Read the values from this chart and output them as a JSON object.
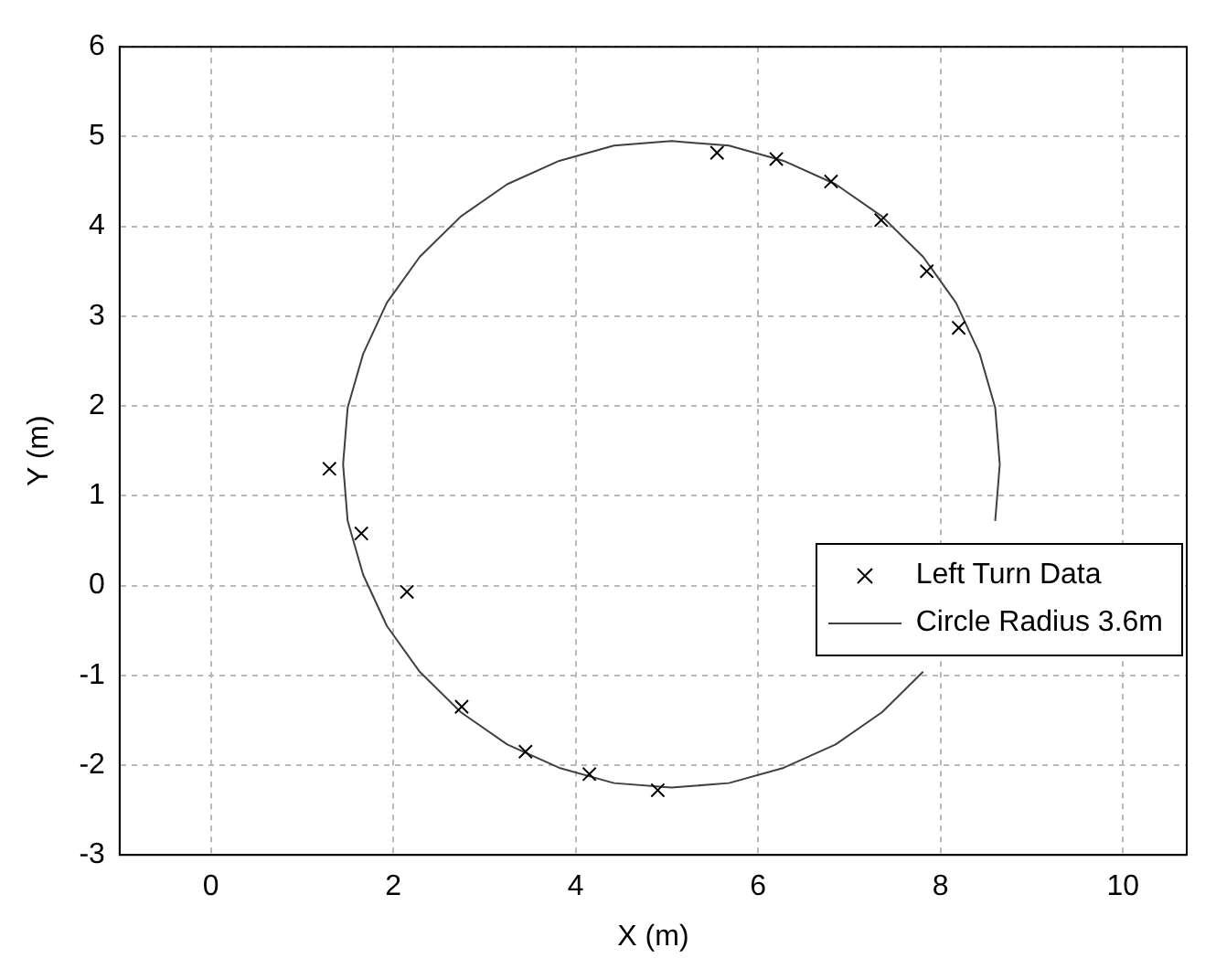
{
  "chart_data": {
    "type": "scatter",
    "xlabel": "X (m)",
    "ylabel": "Y (m)",
    "xlim": [
      -1,
      10.7
    ],
    "xticks": [
      0,
      2,
      4,
      6,
      8,
      10
    ],
    "ylim": [
      -3,
      6
    ],
    "yticks": [
      -3,
      -2,
      -1,
      0,
      1,
      2,
      3,
      4,
      5,
      6
    ],
    "grid": true,
    "legend": "right",
    "series": [
      {
        "name": "Left Turn Data",
        "type": "scatter",
        "marker": "cross",
        "color": "#000000",
        "x": [
          1.3,
          1.65,
          2.15,
          2.75,
          3.45,
          4.15,
          4.9,
          5.55,
          6.2,
          6.8,
          7.35,
          7.85,
          8.2
        ],
        "values": [
          1.3,
          0.58,
          -0.07,
          -1.35,
          -1.85,
          -2.1,
          -2.28,
          4.82,
          4.75,
          4.5,
          4.07,
          3.5,
          2.87
        ]
      },
      {
        "name": "Circle Radius 3.6m",
        "type": "line",
        "marker": "none",
        "line_style": "solid",
        "color": "#404040",
        "x": [
          8.65,
          8.6,
          8.43,
          8.17,
          7.81,
          7.36,
          6.85,
          6.28,
          5.68,
          5.05,
          4.42,
          3.82,
          3.25,
          2.74,
          2.29,
          1.93,
          1.67,
          1.5,
          1.45,
          1.5,
          1.67,
          1.93,
          2.29,
          2.74,
          3.25,
          3.82,
          4.42,
          5.05,
          5.68,
          6.28,
          6.85,
          7.36,
          7.81,
          8.17,
          8.43,
          8.6,
          8.65
        ],
        "values": [
          1.35,
          1.98,
          2.58,
          3.15,
          3.66,
          4.11,
          4.47,
          4.73,
          4.9,
          4.95,
          4.9,
          4.73,
          4.47,
          4.11,
          3.66,
          3.15,
          2.58,
          1.98,
          1.35,
          0.72,
          0.12,
          -0.45,
          -0.96,
          -1.41,
          -1.77,
          -2.03,
          -2.2,
          -2.25,
          -2.2,
          -2.03,
          -1.77,
          -1.41,
          -0.96,
          null,
          null,
          0.72,
          1.35
        ]
      }
    ]
  }
}
